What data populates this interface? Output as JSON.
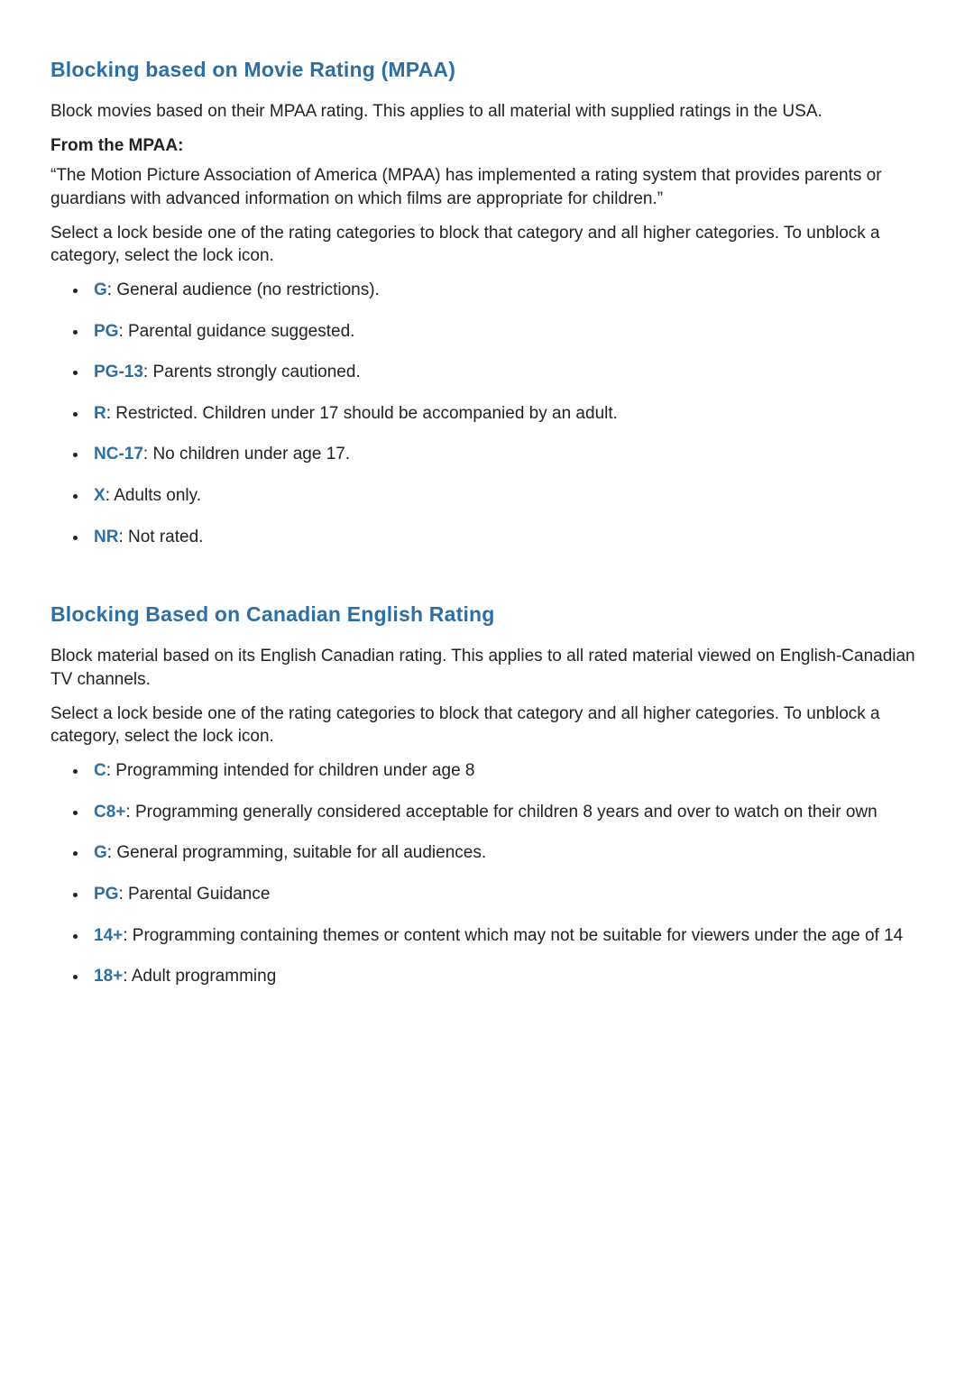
{
  "colors": {
    "heading": "#2e6fa3",
    "body_text": "#222222",
    "background": "#ffffff"
  },
  "section1": {
    "heading": "Blocking based on Movie Rating (MPAA)",
    "intro": "Block movies based on their MPAA rating. This applies to all material with supplied ratings in the USA.",
    "from_label": "From the MPAA:",
    "quote": "“The Motion Picture Association of America (MPAA) has implemented a rating system that provides parents or guardians with advanced information on which films are appropriate for children.”",
    "instruction": "Select a lock beside one of the rating categories to block that category and all higher categories. To unblock a category, select the lock icon.",
    "items": [
      {
        "code": "G",
        "desc": ": General audience (no restrictions)."
      },
      {
        "code": "PG",
        "desc": ": Parental guidance suggested."
      },
      {
        "code": "PG-13",
        "desc": ": Parents strongly cautioned."
      },
      {
        "code": "R",
        "desc": ": Restricted. Children under 17 should be accompanied by an adult."
      },
      {
        "code": "NC-17",
        "desc": ": No children under age 17."
      },
      {
        "code": "X",
        "desc": ": Adults only."
      },
      {
        "code": "NR",
        "desc": ": Not rated."
      }
    ]
  },
  "section2": {
    "heading": "Blocking Based on Canadian English Rating",
    "intro": "Block material based on its English Canadian rating. This applies to all rated material viewed on English-Canadian TV channels.",
    "instruction": "Select a lock beside one of the rating categories to block that category and all higher categories. To unblock a category, select the lock icon.",
    "items": [
      {
        "code": "C",
        "desc": ": Programming intended for children under age 8"
      },
      {
        "code": "C8+",
        "desc": ": Programming generally considered acceptable for children 8 years and over to watch on their own"
      },
      {
        "code": "G",
        "desc": ": General programming, suitable for all audiences."
      },
      {
        "code": "PG",
        "desc": ": Parental Guidance"
      },
      {
        "code": "14+",
        "desc": ": Programming containing themes or content which may not be suitable for viewers under the age of 14"
      },
      {
        "code": "18+",
        "desc": ": Adult programming"
      }
    ]
  }
}
